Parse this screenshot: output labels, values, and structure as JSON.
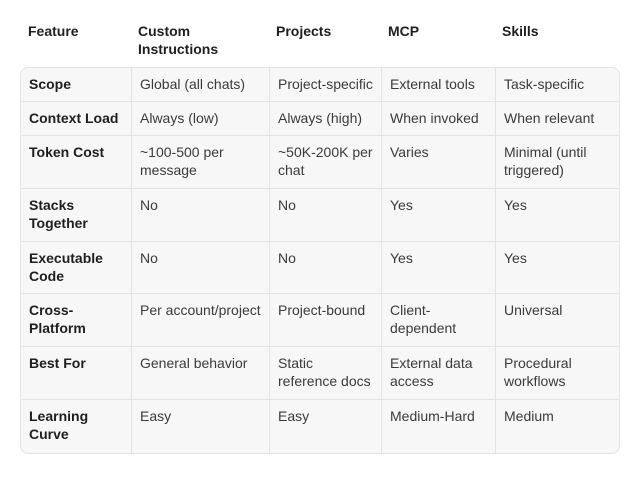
{
  "columns": [
    "Feature",
    "Custom Instructions",
    "Projects",
    "MCP",
    "Skills"
  ],
  "rows": [
    {
      "feature": "Scope",
      "custom": "Global (all chats)",
      "projects": "Project-specific",
      "mcp": "External tools",
      "skills": "Task-specific"
    },
    {
      "feature": "Context Load",
      "custom": "Always (low)",
      "projects": "Always (high)",
      "mcp": "When invoked",
      "skills": "When relevant"
    },
    {
      "feature": "Token Cost",
      "custom": "~100-500 per message",
      "projects": "~50K-200K per chat",
      "mcp": "Varies",
      "skills": "Minimal (until triggered)"
    },
    {
      "feature": "Stacks Together",
      "custom": "No",
      "projects": "No",
      "mcp": "Yes",
      "skills": "Yes"
    },
    {
      "feature": "Executable Code",
      "custom": "No",
      "projects": "No",
      "mcp": "Yes",
      "skills": "Yes"
    },
    {
      "feature": "Cross-Platform",
      "custom": "Per account/project",
      "projects": "Project-bound",
      "mcp": "Client-dependent",
      "skills": "Universal"
    },
    {
      "feature": "Best For",
      "custom": "General behavior",
      "projects": "Static reference docs",
      "mcp": "External data access",
      "skills": "Procedural workflows"
    },
    {
      "feature": "Learning Curve",
      "custom": "Easy",
      "projects": "Easy",
      "mcp": "Medium-Hard",
      "skills": "Medium"
    }
  ]
}
